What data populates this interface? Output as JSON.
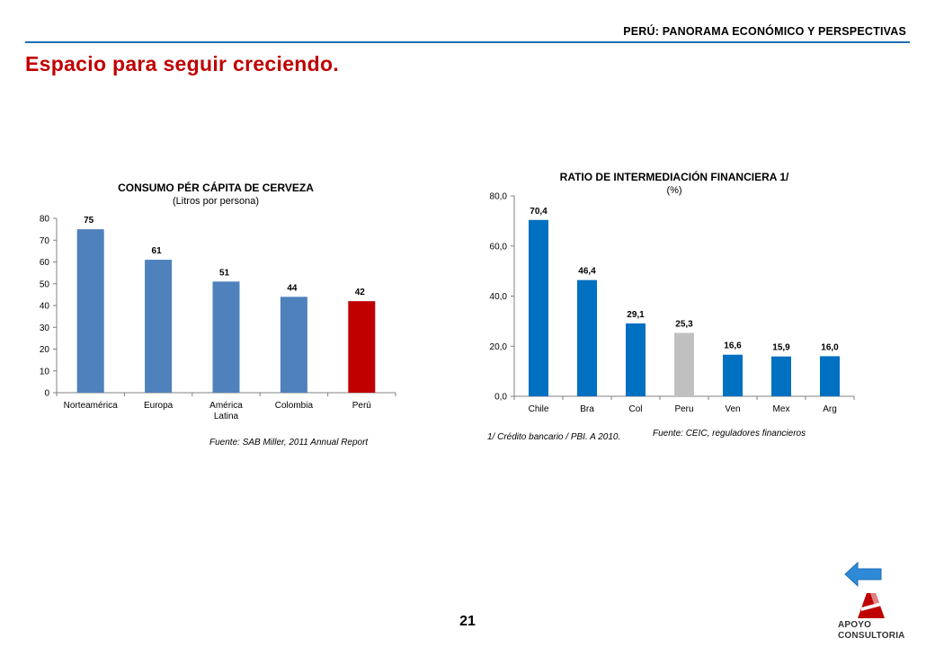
{
  "header": {
    "section_title": "PERÚ: PANORAMA ECONÓMICO Y PERSPECTIVAS",
    "slide_title": "Espacio para seguir creciendo."
  },
  "colors": {
    "accent_blue": "#1f6eb5",
    "title_red": "#c00000",
    "bar_blue_left": "#4f81bd",
    "bar_red": "#c00000",
    "bar_blue_right": "#0070c0",
    "bar_gray": "#c0c0c0"
  },
  "chart_data": [
    {
      "type": "bar",
      "title": "CONSUMO PÉR CÁPITA DE CERVEZA",
      "subtitle": "(Litros por persona)",
      "categories": [
        [
          "Norteamérica"
        ],
        [
          "Europa"
        ],
        [
          "América",
          "Latina"
        ],
        [
          "Colombia"
        ],
        [
          "Perú"
        ]
      ],
      "values": [
        75,
        61,
        51,
        44,
        42
      ],
      "value_labels": [
        "75",
        "61",
        "51",
        "44",
        "42"
      ],
      "highlight_index": 4,
      "ylim": [
        0,
        80
      ],
      "yticks": [
        "0",
        "10",
        "20",
        "30",
        "40",
        "50",
        "60",
        "70",
        "80"
      ],
      "grid": false,
      "source": "Fuente: SAB Miller, 2011 Annual Report"
    },
    {
      "type": "bar",
      "title": "RATIO DE INTERMEDIACIÓN FINANCIERA  1/",
      "subtitle": "(%)",
      "categories": [
        [
          "Chile"
        ],
        [
          "Bra"
        ],
        [
          "Col"
        ],
        [
          "Peru"
        ],
        [
          "Ven"
        ],
        [
          "Mex"
        ],
        [
          "Arg"
        ]
      ],
      "values": [
        70.4,
        46.4,
        29.1,
        25.3,
        16.6,
        15.9,
        16.0
      ],
      "value_labels": [
        "70,4",
        "46,4",
        "29,1",
        "25,3",
        "16,6",
        "15,9",
        "16,0"
      ],
      "highlight_index": 3,
      "ylim": [
        0,
        80
      ],
      "yticks": [
        "0,0",
        "20,0",
        "40,0",
        "60,0",
        "80,0"
      ],
      "grid": false,
      "footnote": "1/ Crédito bancario / PBI. A 2010.",
      "source": "Fuente: CEIC, reguladores financieros"
    }
  ],
  "footer": {
    "page_number": "21",
    "logo_line1": "APOYO",
    "logo_line2": "CONSULTORIA"
  }
}
